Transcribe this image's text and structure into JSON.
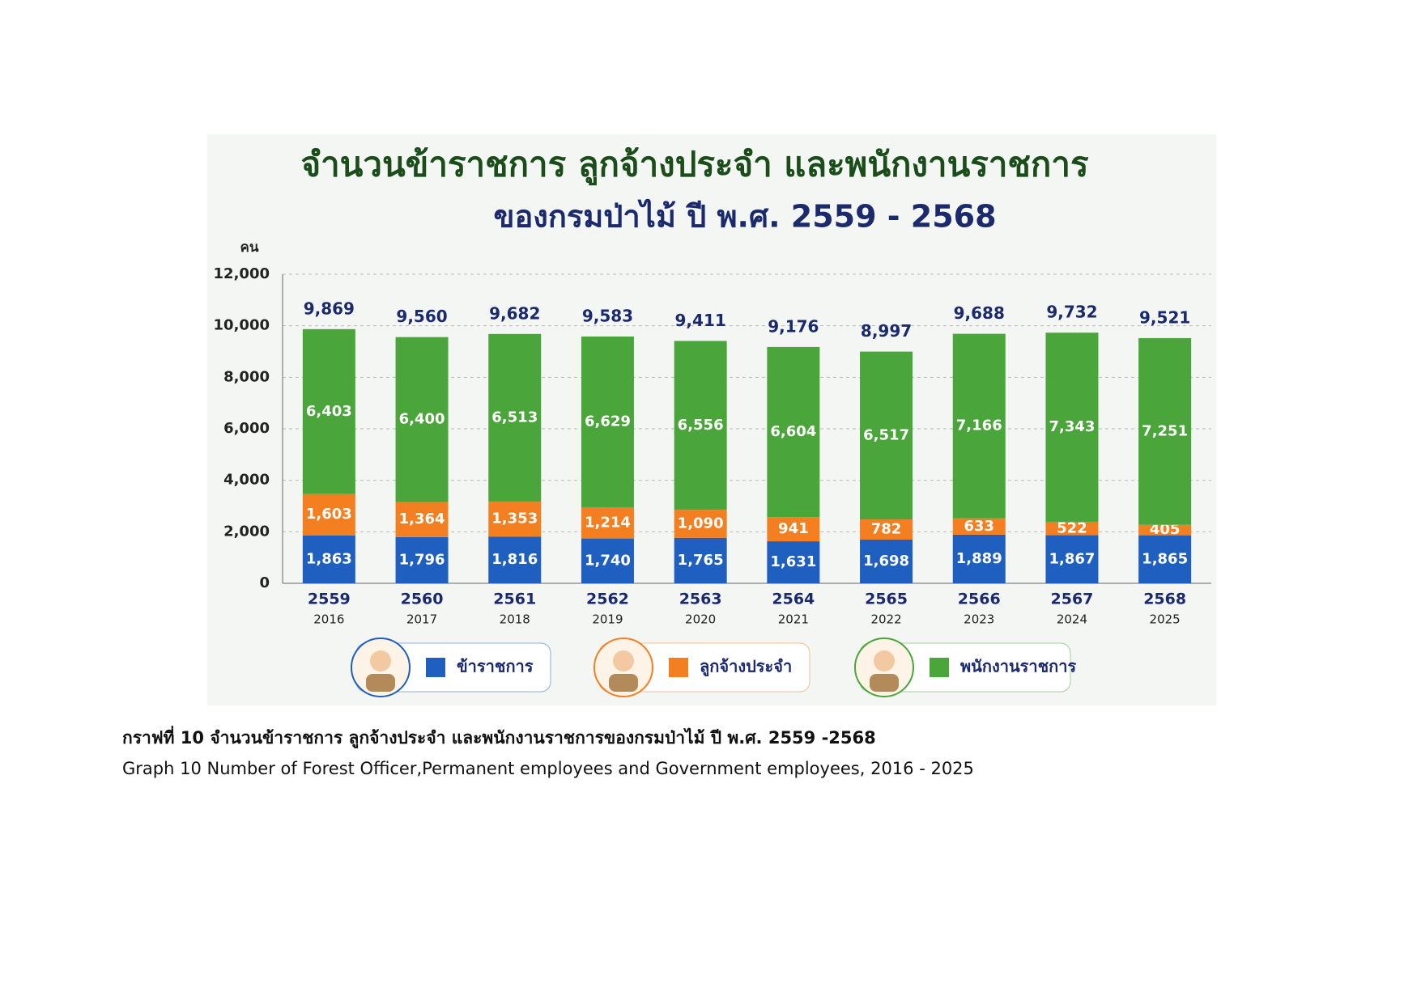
{
  "chart_data": {
    "type": "stacked-bar",
    "title": "จำนวนข้าราชการ ลูกจ้างประจำ และพนักงานราชการ",
    "subtitle": "ของกรมป่าไม้ ปี พ.ศ. 2559 - 2568",
    "y_label": "คน",
    "categories": [
      "2559",
      "2560",
      "2561",
      "2562",
      "2563",
      "2564",
      "2565",
      "2566",
      "2567",
      "2568"
    ],
    "categories_ad": [
      "2016",
      "2017",
      "2018",
      "2019",
      "2020",
      "2021",
      "2022",
      "2023",
      "2024",
      "2025"
    ],
    "series": [
      {
        "name": "ข้าราชการ",
        "color": "#1f5fbf",
        "values": [
          1863,
          1796,
          1816,
          1740,
          1765,
          1631,
          1698,
          1889,
          1867,
          1865
        ],
        "value_labels": [
          "1,863",
          "1,796",
          "1,816",
          "1,740",
          "1,765",
          "1,631",
          "1,698",
          "1,889",
          "1,867",
          "1,865"
        ]
      },
      {
        "name": "ลูกจ้างประจำ",
        "color": "#f47f20",
        "values": [
          1603,
          1364,
          1353,
          1214,
          1090,
          941,
          782,
          633,
          522,
          405
        ],
        "value_labels": [
          "1,603",
          "1,364",
          "1,353",
          "1,214",
          "1,090",
          "941",
          "782",
          "633",
          "522",
          "405"
        ]
      },
      {
        "name": "พนักงานราชการ",
        "color": "#4aa53a",
        "values": [
          6403,
          6400,
          6513,
          6629,
          6556,
          6604,
          6517,
          7166,
          7343,
          7251
        ],
        "value_labels": [
          "6,403",
          "6,400",
          "6,513",
          "6,629",
          "6,556",
          "6,604",
          "6,517",
          "7,166",
          "7,343",
          "7,251"
        ]
      }
    ],
    "totals": [
      9869,
      9560,
      9682,
      9583,
      9411,
      9176,
      8997,
      9688,
      9732,
      9521
    ],
    "total_labels": [
      "9,869",
      "9,560",
      "9,682",
      "9,583",
      "9,411",
      "9,176",
      "8,997",
      "9,688",
      "9,732",
      "9,521"
    ],
    "ylim": [
      0,
      12000
    ],
    "yticks": [
      0,
      {
        "value": 2000,
        "label": "2,000"
      },
      {
        "value": 4000,
        "label": "4,000"
      },
      {
        "value": 6000,
        "label": "6,000"
      },
      {
        "value": 8000,
        "label": "8,000"
      },
      {
        "value": 10000,
        "label": "10,000"
      },
      {
        "value": 12000,
        "label": "12,000"
      }
    ],
    "grid": true
  },
  "caption": {
    "thai": "กราฟที่ 10 จำนวนข้าราชการ ลูกจ้างประจำ และพนักงานราชการของกรมป่าไม้ ปี พ.ศ. 2559 -2568",
    "english": "Graph 10 Number of Forest Officer,Permanent employees and Government employees, 2016 - 2025"
  }
}
